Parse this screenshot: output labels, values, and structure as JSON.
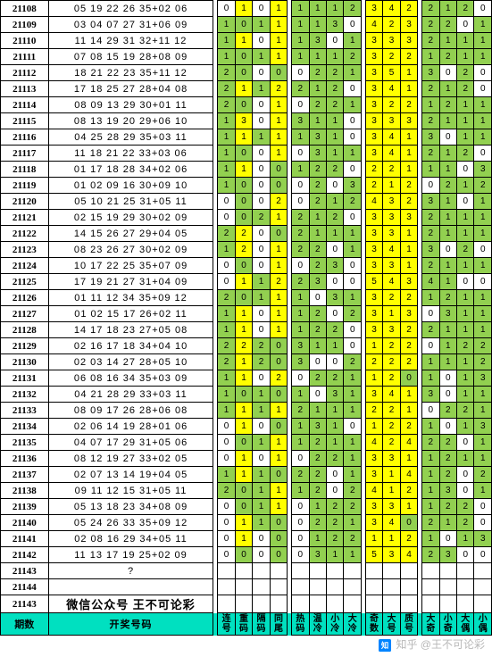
{
  "col": {
    "g": "#92d050",
    "y": "#ffff00",
    "h": "#00e0c0"
  },
  "groupstyle": [
    "",
    "y",
    "",
    "y",
    "y",
    ""
  ],
  "rows": [
    {
      "p": "21108",
      "n": "05 19 22 26 35+02 06",
      "c": [
        [
          0,
          1,
          0,
          1
        ],
        [
          1,
          1,
          1,
          2
        ],
        [
          3,
          4,
          2
        ],
        [
          2,
          1,
          2,
          0
        ]
      ]
    },
    {
      "p": "21109",
      "n": "03 04 07 27 31+06 09",
      "c": [
        [
          1,
          0,
          1,
          1
        ],
        [
          1,
          1,
          3,
          0
        ],
        [
          4,
          2,
          3
        ],
        [
          2,
          2,
          0,
          1
        ]
      ]
    },
    {
      "p": "21110",
      "n": "11 14 29 31 32+11 12",
      "c": [
        [
          1,
          1,
          0,
          1
        ],
        [
          1,
          3,
          0,
          1
        ],
        [
          3,
          3,
          3
        ],
        [
          2,
          1,
          1,
          1
        ]
      ]
    },
    {
      "p": "21111",
      "n": "07 08 15 19 28+08 09",
      "c": [
        [
          1,
          0,
          1,
          1
        ],
        [
          1,
          1,
          1,
          2
        ],
        [
          3,
          2,
          2
        ],
        [
          1,
          2,
          1,
          1
        ]
      ]
    },
    {
      "p": "21112",
      "n": "18 21 22 23 35+11 12",
      "c": [
        [
          2,
          0,
          0,
          0
        ],
        [
          0,
          2,
          2,
          1
        ],
        [
          3,
          5,
          1
        ],
        [
          3,
          0,
          2,
          0
        ]
      ]
    },
    {
      "p": "21113",
      "n": "17 18 25 27 28+04 08",
      "c": [
        [
          2,
          1,
          1,
          2
        ],
        [
          2,
          1,
          2,
          0
        ],
        [
          3,
          4,
          1
        ],
        [
          2,
          1,
          2,
          0
        ]
      ]
    },
    {
      "p": "21114",
      "n": "08 09 13 29 30+01 11",
      "c": [
        [
          2,
          0,
          0,
          1
        ],
        [
          0,
          2,
          2,
          1
        ],
        [
          3,
          2,
          2
        ],
        [
          1,
          2,
          1,
          1
        ]
      ]
    },
    {
      "p": "21115",
      "n": "08 13 19 20 29+06 10",
      "c": [
        [
          1,
          3,
          0,
          1
        ],
        [
          3,
          1,
          1,
          0
        ],
        [
          3,
          3,
          3
        ],
        [
          2,
          1,
          1,
          1
        ]
      ]
    },
    {
      "p": "21116",
      "n": "04 25 28 29 35+03 11",
      "c": [
        [
          1,
          1,
          1,
          1
        ],
        [
          1,
          3,
          1,
          0
        ],
        [
          3,
          4,
          1
        ],
        [
          3,
          0,
          1,
          1
        ]
      ]
    },
    {
      "p": "21117",
      "n": "11 18 21 22 33+03 06",
      "c": [
        [
          1,
          0,
          0,
          1
        ],
        [
          0,
          3,
          1,
          1
        ],
        [
          3,
          4,
          1
        ],
        [
          2,
          1,
          2,
          0
        ]
      ]
    },
    {
      "p": "21118",
      "n": "01 17 18 28 34+02 06",
      "c": [
        [
          1,
          1,
          0,
          0
        ],
        [
          1,
          2,
          2,
          0
        ],
        [
          2,
          2,
          1
        ],
        [
          1,
          1,
          0,
          3
        ]
      ]
    },
    {
      "p": "21119",
      "n": "01 02 09 16 30+09 10",
      "c": [
        [
          1,
          0,
          0,
          0
        ],
        [
          0,
          2,
          0,
          3
        ],
        [
          2,
          1,
          2
        ],
        [
          0,
          2,
          1,
          2
        ]
      ]
    },
    {
      "p": "21120",
      "n": "05 10 21 25 31+05 11",
      "c": [
        [
          0,
          0,
          0,
          2
        ],
        [
          0,
          2,
          1,
          2
        ],
        [
          4,
          3,
          2
        ],
        [
          3,
          1,
          0,
          1
        ]
      ]
    },
    {
      "p": "21121",
      "n": "02 15 19 29 30+02 09",
      "c": [
        [
          0,
          0,
          2,
          1
        ],
        [
          2,
          1,
          2,
          0
        ],
        [
          3,
          3,
          3
        ],
        [
          2,
          1,
          1,
          1
        ]
      ]
    },
    {
      "p": "21122",
      "n": "14 15 26 27 29+04 05",
      "c": [
        [
          2,
          2,
          0,
          0
        ],
        [
          2,
          1,
          1,
          1
        ],
        [
          3,
          3,
          1
        ],
        [
          2,
          1,
          1,
          1
        ]
      ]
    },
    {
      "p": "21123",
      "n": "08 23 26 27 30+02 09",
      "c": [
        [
          1,
          2,
          0,
          1
        ],
        [
          2,
          2,
          0,
          1
        ],
        [
          3,
          4,
          1
        ],
        [
          3,
          0,
          2,
          0
        ]
      ]
    },
    {
      "p": "21124",
      "n": "10 17 22 25 35+07 09",
      "c": [
        [
          0,
          0,
          0,
          1
        ],
        [
          0,
          2,
          3,
          0
        ],
        [
          3,
          3,
          1
        ],
        [
          2,
          1,
          1,
          1
        ]
      ]
    },
    {
      "p": "21125",
      "n": "17 19 21 27 31+04 09",
      "c": [
        [
          0,
          1,
          1,
          2
        ],
        [
          2,
          3,
          0,
          0
        ],
        [
          5,
          4,
          3
        ],
        [
          4,
          1,
          0,
          0
        ]
      ]
    },
    {
      "p": "21126",
      "n": "01 11 12 34 35+09 12",
      "c": [
        [
          2,
          0,
          1,
          1
        ],
        [
          1,
          0,
          3,
          1
        ],
        [
          3,
          2,
          2
        ],
        [
          1,
          2,
          1,
          1
        ]
      ]
    },
    {
      "p": "21127",
      "n": "01 02 15 17 26+02 11",
      "c": [
        [
          1,
          1,
          0,
          1
        ],
        [
          1,
          2,
          0,
          2
        ],
        [
          3,
          1,
          3
        ],
        [
          0,
          3,
          1,
          1
        ]
      ]
    },
    {
      "p": "21128",
      "n": "14 17 18 23 27+05 08",
      "c": [
        [
          1,
          1,
          0,
          1
        ],
        [
          1,
          2,
          2,
          0
        ],
        [
          3,
          3,
          2
        ],
        [
          2,
          1,
          1,
          1
        ]
      ]
    },
    {
      "p": "21129",
      "n": "02 16 17 18 34+04 10",
      "c": [
        [
          2,
          2,
          2,
          0
        ],
        [
          3,
          1,
          1,
          0
        ],
        [
          1,
          2,
          2
        ],
        [
          0,
          1,
          2,
          2
        ]
      ]
    },
    {
      "p": "21130",
      "n": "02 03 14 27 28+05 10",
      "c": [
        [
          2,
          1,
          2,
          0
        ],
        [
          3,
          0,
          0,
          2
        ],
        [
          2,
          2,
          2
        ],
        [
          1,
          1,
          1,
          2
        ]
      ]
    },
    {
      "p": "21131",
      "n": "06 08 16 34 35+03 09",
      "c": [
        [
          1,
          1,
          0,
          2
        ],
        [
          0,
          2,
          2,
          1
        ],
        [
          1,
          2,
          0
        ],
        [
          1,
          0,
          1,
          3
        ]
      ]
    },
    {
      "p": "21132",
      "n": "04 21 28 29 33+03 11",
      "c": [
        [
          1,
          0,
          1,
          0
        ],
        [
          1,
          0,
          3,
          1
        ],
        [
          3,
          4,
          1
        ],
        [
          3,
          0,
          1,
          1
        ]
      ]
    },
    {
      "p": "21133",
      "n": "08 09 17 26 28+06 08",
      "c": [
        [
          1,
          1,
          1,
          1
        ],
        [
          2,
          1,
          1,
          1
        ],
        [
          2,
          2,
          1
        ],
        [
          0,
          2,
          2,
          1
        ]
      ]
    },
    {
      "p": "21134",
      "n": "02 06 14 19 28+01 06",
      "c": [
        [
          0,
          1,
          0,
          0
        ],
        [
          1,
          3,
          1,
          0
        ],
        [
          1,
          2,
          2
        ],
        [
          1,
          0,
          1,
          3
        ]
      ]
    },
    {
      "p": "21135",
      "n": "04 07 17 29 31+05 06",
      "c": [
        [
          0,
          0,
          1,
          1
        ],
        [
          1,
          2,
          1,
          1
        ],
        [
          4,
          2,
          4
        ],
        [
          2,
          2,
          0,
          1
        ]
      ]
    },
    {
      "p": "21136",
      "n": "08 12 19 27 33+02 05",
      "c": [
        [
          0,
          1,
          0,
          1
        ],
        [
          0,
          2,
          2,
          1
        ],
        [
          3,
          3,
          1
        ],
        [
          1,
          2,
          1,
          1
        ]
      ]
    },
    {
      "p": "21137",
      "n": "02 07 13 14 19+04 05",
      "c": [
        [
          1,
          1,
          1,
          0
        ],
        [
          2,
          2,
          0,
          1
        ],
        [
          3,
          1,
          4
        ],
        [
          1,
          2,
          0,
          2
        ]
      ]
    },
    {
      "p": "21138",
      "n": "09 11 12 15 31+05 11",
      "c": [
        [
          2,
          0,
          1,
          1
        ],
        [
          1,
          2,
          0,
          2
        ],
        [
          4,
          1,
          2
        ],
        [
          1,
          3,
          0,
          1
        ]
      ]
    },
    {
      "p": "21139",
      "n": "05 13 18 23 34+08 09",
      "c": [
        [
          0,
          0,
          1,
          1
        ],
        [
          0,
          1,
          2,
          2
        ],
        [
          3,
          3,
          1
        ],
        [
          1,
          2,
          2,
          0
        ]
      ]
    },
    {
      "p": "21140",
      "n": "05 24 26 33 35+09 12",
      "c": [
        [
          0,
          1,
          1,
          0
        ],
        [
          0,
          2,
          2,
          1
        ],
        [
          3,
          4,
          0
        ],
        [
          2,
          1,
          2,
          0
        ]
      ]
    },
    {
      "p": "21141",
      "n": "02 08 16 29 34+05 11",
      "c": [
        [
          0,
          1,
          0,
          0
        ],
        [
          0,
          1,
          2,
          2
        ],
        [
          1,
          1,
          2
        ],
        [
          1,
          0,
          1,
          3
        ]
      ]
    },
    {
      "p": "21142",
      "n": "11 13 17 19 25+02 09",
      "c": [
        [
          0,
          0,
          0,
          0
        ],
        [
          0,
          3,
          1,
          1
        ],
        [
          5,
          3,
          4
        ],
        [
          2,
          3,
          0,
          0
        ]
      ]
    }
  ],
  "empty": [
    "21143",
    "21144"
  ],
  "wxrow": "21143",
  "wxtext": "微信公众号 王不可论彩",
  "q": "?",
  "hdr": {
    "p": "期数",
    "n": "开奖号码",
    "cols": [
      "连号",
      "重码",
      "隔码",
      "同尾",
      "热码",
      "温冷",
      "小冷",
      "大冷",
      "奇数",
      "大号",
      "质号",
      "大奇",
      "小奇",
      "大偶",
      "小偶"
    ]
  },
  "watermark": "知乎 @王不可论彩"
}
